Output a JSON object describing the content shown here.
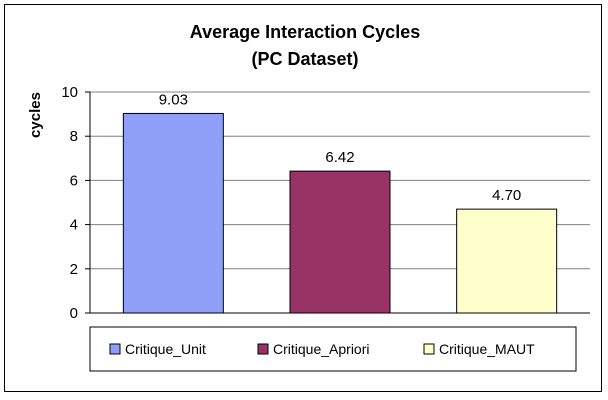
{
  "chart_data": {
    "type": "bar",
    "title": [
      "Average Interaction Cycles",
      "(PC Dataset)"
    ],
    "xlabel": "",
    "ylabel": "cycles",
    "ylim": [
      0,
      10
    ],
    "yticks": [
      0,
      2,
      4,
      6,
      8,
      10
    ],
    "grid": true,
    "legend_position": "bottom",
    "categories": [
      "Critique_Unit",
      "Critique_Apriori",
      "Critique_MAUT"
    ],
    "values": [
      9.03,
      6.42,
      4.7
    ],
    "value_labels": [
      "9.03",
      "6.42",
      "4.70"
    ],
    "colors": [
      "#8F9FF7",
      "#993366",
      "#FFFFCC"
    ]
  }
}
